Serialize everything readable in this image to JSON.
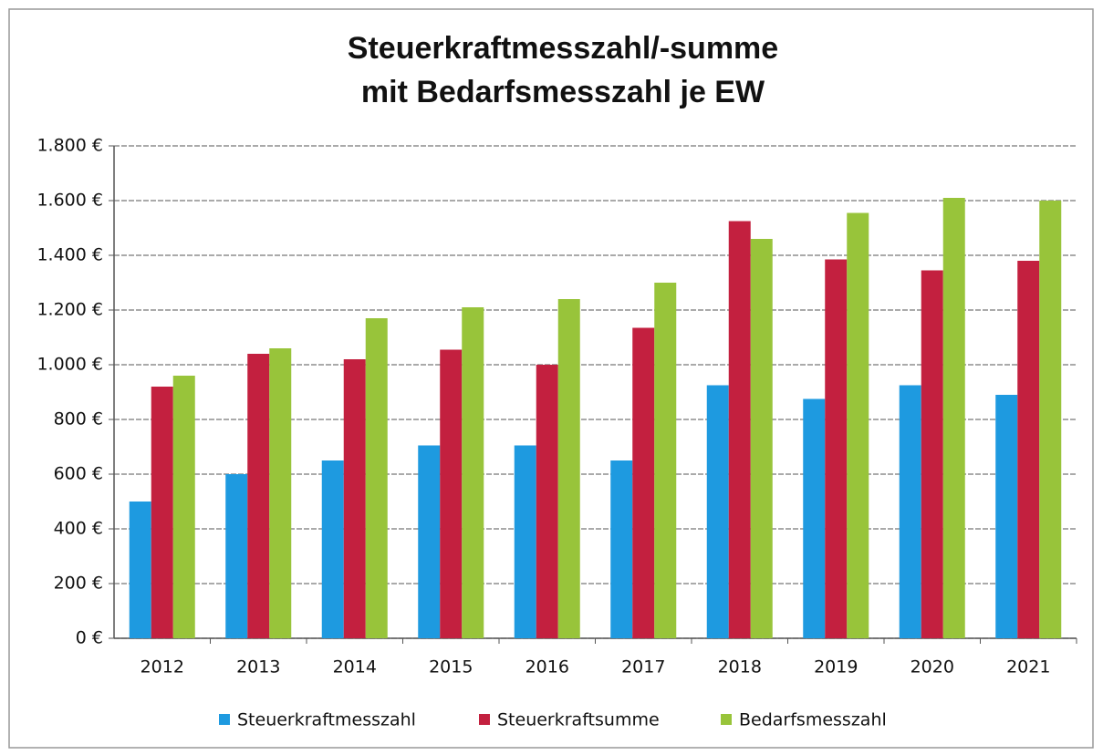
{
  "chart_data": {
    "type": "bar",
    "title": [
      "Steuerkraftmesszahl/-summe",
      "mit Bedarfsmesszahl je EW"
    ],
    "categories": [
      "2012",
      "2013",
      "2014",
      "2015",
      "2016",
      "2017",
      "2018",
      "2019",
      "2020",
      "2021"
    ],
    "series": [
      {
        "name": "Steuerkraftmesszahl",
        "color": "#1e9ae0",
        "values": [
          500,
          600,
          650,
          705,
          705,
          650,
          925,
          875,
          925,
          890
        ]
      },
      {
        "name": "Steuerkraftsumme",
        "color": "#c3203f",
        "values": [
          920,
          1040,
          1020,
          1055,
          1000,
          1135,
          1525,
          1385,
          1345,
          1380
        ]
      },
      {
        "name": "Bedarfsmesszahl",
        "color": "#98c43a",
        "values": [
          960,
          1060,
          1170,
          1210,
          1240,
          1300,
          1460,
          1555,
          1610,
          1600
        ]
      }
    ],
    "ylim": [
      0,
      1800
    ],
    "yticks": [
      {
        "value": 0,
        "label": "0 €"
      },
      {
        "value": 200,
        "label": "200 €"
      },
      {
        "value": 400,
        "label": "400 €"
      },
      {
        "value": 600,
        "label": "600 €"
      },
      {
        "value": 800,
        "label": "800 €"
      },
      {
        "value": 1000,
        "label": "1.000 €"
      },
      {
        "value": 1200,
        "label": "1.200 €"
      },
      {
        "value": 1400,
        "label": "1.400 €"
      },
      {
        "value": 1600,
        "label": "1.600 €"
      },
      {
        "value": 1800,
        "label": "1.800 €"
      }
    ],
    "grid": true,
    "legend": "bottom"
  }
}
